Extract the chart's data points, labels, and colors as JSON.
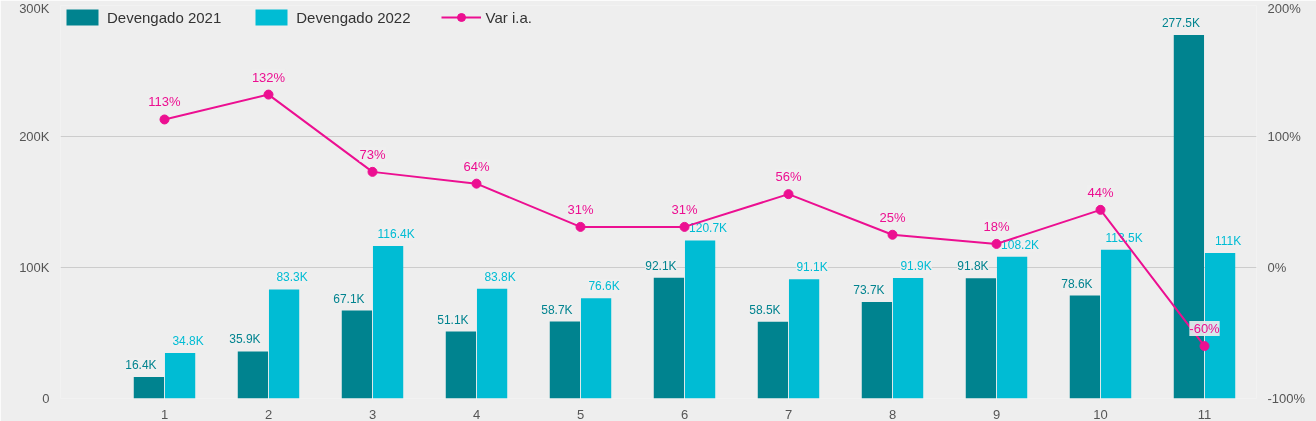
{
  "chart_data": {
    "type": "bar",
    "categories": [
      "1",
      "2",
      "3",
      "4",
      "5",
      "6",
      "7",
      "8",
      "9",
      "10",
      "11"
    ],
    "series": [
      {
        "name": "Devengado 2021",
        "color": "#00838f",
        "values": [
          16400,
          35900,
          67100,
          51100,
          58700,
          92100,
          58500,
          73700,
          91800,
          78600,
          277500
        ],
        "value_labels": [
          "16.4K",
          "35.9K",
          "67.1K",
          "51.1K",
          "58.7K",
          "92.1K",
          "58.5K",
          "73.7K",
          "91.8K",
          "78.6K",
          "277.5K"
        ]
      },
      {
        "name": "Devengado 2022",
        "color": "#00bcd4",
        "values": [
          34800,
          83300,
          116400,
          83800,
          76600,
          120700,
          91100,
          91900,
          108200,
          113500,
          111000
        ],
        "value_labels": [
          "34.8K",
          "83.3K",
          "116.4K",
          "83.8K",
          "76.6K",
          "120.7K",
          "91.1K",
          "91.9K",
          "108.2K",
          "113.5K",
          "111K"
        ]
      },
      {
        "name": "Var i.a.",
        "type": "line",
        "axis": "y2",
        "color": "#ec0f91",
        "marker": "circle",
        "values": [
          113,
          132,
          73,
          64,
          31,
          31,
          56,
          25,
          18,
          44,
          -60
        ],
        "value_labels": [
          "113%",
          "132%",
          "73%",
          "64%",
          "31%",
          "31%",
          "56%",
          "25%",
          "18%",
          "44%",
          "-60%"
        ]
      }
    ],
    "ylim": [
      0,
      300000
    ],
    "yticks": [
      {
        "value": 0,
        "label": "0"
      },
      {
        "value": 100000,
        "label": "100K"
      },
      {
        "value": 200000,
        "label": "200K"
      },
      {
        "value": 300000,
        "label": "300K"
      }
    ],
    "y2lim": [
      -100,
      200
    ],
    "y2ticks": [
      {
        "value": -100,
        "label": "-100%"
      },
      {
        "value": 0,
        "label": "0%"
      },
      {
        "value": 100,
        "label": "100%"
      },
      {
        "value": 200,
        "label": "200%"
      }
    ],
    "grid": "y",
    "legend": "top left"
  }
}
